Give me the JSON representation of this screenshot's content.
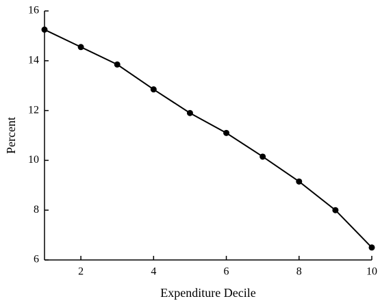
{
  "chart_data": {
    "type": "line",
    "x": [
      1,
      2,
      3,
      4,
      5,
      6,
      7,
      8,
      9,
      10
    ],
    "series": [
      {
        "name": null,
        "color": "#000000",
        "values": [
          15.25,
          14.55,
          13.85,
          12.85,
          11.9,
          11.1,
          10.15,
          9.15,
          8.0,
          6.5
        ]
      }
    ],
    "xlabel": "Expenditure Decile",
    "ylabel": "Percent",
    "xlim": [
      1,
      10
    ],
    "xticks": [
      2,
      4,
      6,
      8,
      10
    ],
    "ylim": [
      6,
      16
    ],
    "yticks": [
      6,
      8,
      10,
      12,
      14,
      16
    ],
    "grid": false
  }
}
